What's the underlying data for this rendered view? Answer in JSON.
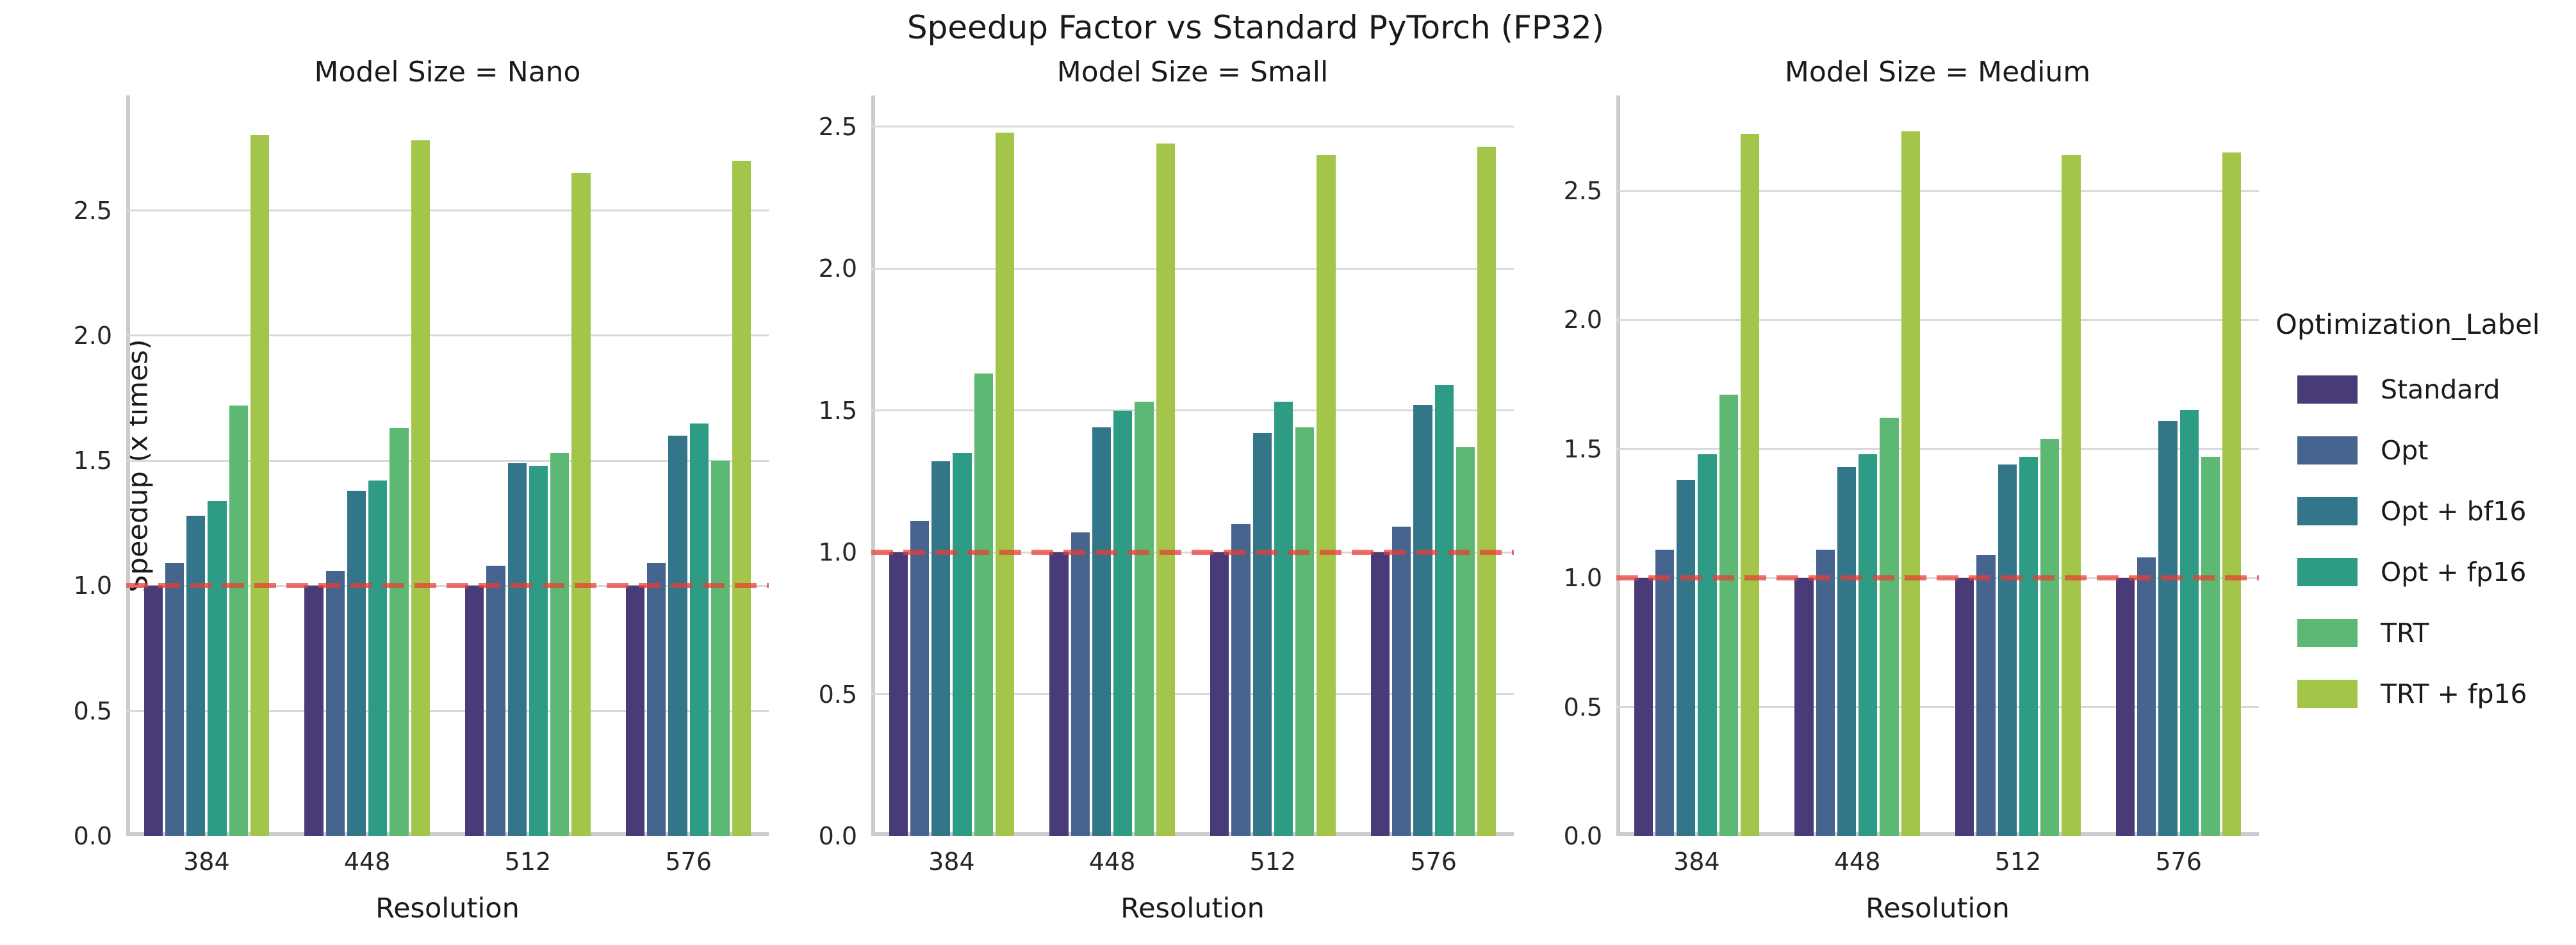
{
  "figure": {
    "title": "Speedup Factor vs Standard PyTorch (FP32)",
    "background": "#ffffff"
  },
  "axes": {
    "ylabel": "Speedup (x times)",
    "xlabel": "Resolution",
    "ytick_labels": [
      "0.0",
      "0.5",
      "1.0",
      "1.5",
      "2.0",
      "2.5"
    ],
    "xtick_labels": [
      "384",
      "448",
      "512",
      "576"
    ],
    "grid_color": "#d9d9d9",
    "spine_color": "#cccccc",
    "text_color": "#262626"
  },
  "legend": {
    "title": "Optimization_Label",
    "entries": [
      {
        "label": "Standard",
        "color": "#483b78"
      },
      {
        "label": "Opt",
        "color": "#45648e"
      },
      {
        "label": "Opt + bf16",
        "color": "#33768a"
      },
      {
        "label": "Opt + fp16",
        "color": "#2e9c85"
      },
      {
        "label": "TRT",
        "color": "#5cb873"
      },
      {
        "label": "TRT + fp16",
        "color": "#a3c64a"
      }
    ]
  },
  "baseline": {
    "value": 1.0,
    "color": "rgba(233,60,52,0.72)",
    "style": "dashed"
  },
  "chart_data": {
    "type": "bar",
    "title": "Speedup Factor vs Standard PyTorch (FP32)",
    "xlabel": "Resolution",
    "ylabel": "Speedup (x times)",
    "categories": [
      "384",
      "448",
      "512",
      "576"
    ],
    "yticks": [
      0.0,
      0.5,
      1.0,
      1.5,
      2.0,
      2.5
    ],
    "grid": true,
    "legend_position": "right",
    "series_names": [
      "Standard",
      "Opt",
      "Opt + bf16",
      "Opt + fp16",
      "TRT",
      "TRT + fp16"
    ],
    "palette": [
      "#483b78",
      "#45648e",
      "#33768a",
      "#2e9c85",
      "#5cb873",
      "#a3c64a"
    ],
    "reference_line_y": 1.0,
    "facets": [
      {
        "title": "Model Size = Nano",
        "ylim": [
          0,
          2.96
        ],
        "series": [
          {
            "name": "Standard",
            "values": [
              1.0,
              1.0,
              1.0,
              1.0
            ]
          },
          {
            "name": "Opt",
            "values": [
              1.09,
              1.06,
              1.08,
              1.09
            ]
          },
          {
            "name": "Opt + bf16",
            "values": [
              1.28,
              1.38,
              1.49,
              1.6
            ]
          },
          {
            "name": "Opt + fp16",
            "values": [
              1.34,
              1.42,
              1.48,
              1.65
            ]
          },
          {
            "name": "TRT",
            "values": [
              1.72,
              1.63,
              1.53,
              1.5
            ]
          },
          {
            "name": "TRT + fp16",
            "values": [
              2.8,
              2.78,
              2.65,
              2.7
            ]
          }
        ]
      },
      {
        "title": "Model Size = Small",
        "ylim": [
          0,
          2.61
        ],
        "series": [
          {
            "name": "Standard",
            "values": [
              1.0,
              1.0,
              1.0,
              1.0
            ]
          },
          {
            "name": "Opt",
            "values": [
              1.11,
              1.07,
              1.1,
              1.09
            ]
          },
          {
            "name": "Opt + bf16",
            "values": [
              1.32,
              1.44,
              1.42,
              1.52
            ]
          },
          {
            "name": "Opt + fp16",
            "values": [
              1.35,
              1.5,
              1.53,
              1.59
            ]
          },
          {
            "name": "TRT",
            "values": [
              1.63,
              1.53,
              1.44,
              1.37
            ]
          },
          {
            "name": "TRT + fp16",
            "values": [
              2.48,
              2.44,
              2.4,
              2.43
            ]
          }
        ]
      },
      {
        "title": "Model Size = Medium",
        "ylim": [
          0,
          2.87
        ],
        "series": [
          {
            "name": "Standard",
            "values": [
              1.0,
              1.0,
              1.0,
              1.0
            ]
          },
          {
            "name": "Opt",
            "values": [
              1.11,
              1.11,
              1.09,
              1.08
            ]
          },
          {
            "name": "Opt + bf16",
            "values": [
              1.38,
              1.43,
              1.44,
              1.61
            ]
          },
          {
            "name": "Opt + fp16",
            "values": [
              1.48,
              1.48,
              1.47,
              1.65
            ]
          },
          {
            "name": "TRT",
            "values": [
              1.71,
              1.62,
              1.54,
              1.47
            ]
          },
          {
            "name": "TRT + fp16",
            "values": [
              2.72,
              2.73,
              2.64,
              2.65
            ]
          }
        ]
      }
    ]
  }
}
